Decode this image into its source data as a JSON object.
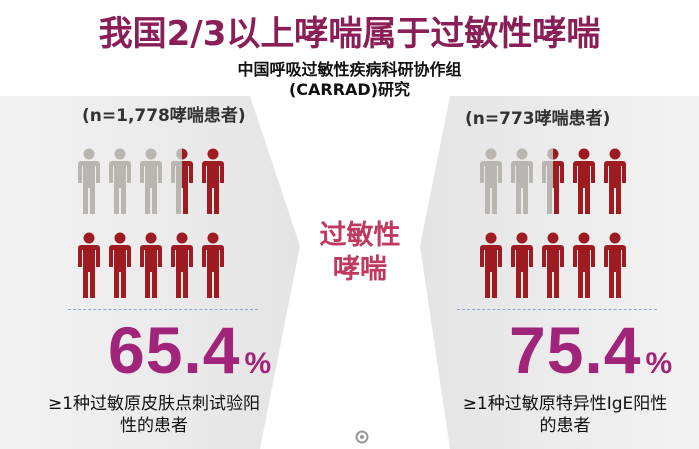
{
  "title": "我国2/3以上哮喘属于过敏性哮喘",
  "subtitle": {
    "line1": "中国呼吸过敏性疾病科研协作组",
    "line2": "(CARRAD)研究"
  },
  "center_label": {
    "line1": "过敏性",
    "line2": "哮喘"
  },
  "colors": {
    "title": "#8a1e56",
    "percent": "#a1247b",
    "allergic": "#9e1b21",
    "non_allergic": "#b9b6b1",
    "center_label": "#c0395f"
  },
  "left_panel": {
    "sample": "(n=1,778哮喘患者)",
    "percent_value": "65.4",
    "percent_sign": "%",
    "fraction": 0.654,
    "description_line1": "≥1种过敏原皮肤点刺试验阳",
    "description_line2": "性的患者",
    "figures_total": 10,
    "figures_grey": 3,
    "figures_half": 1
  },
  "right_panel": {
    "sample": "(n=773哮喘患者)",
    "percent_value": "75.4",
    "percent_sign": "%",
    "fraction": 0.754,
    "description_line1": "≥1种过敏原特异性IgE阳性",
    "description_line2": "的患者",
    "figures_total": 10,
    "figures_grey": 2,
    "figures_half": 1
  }
}
